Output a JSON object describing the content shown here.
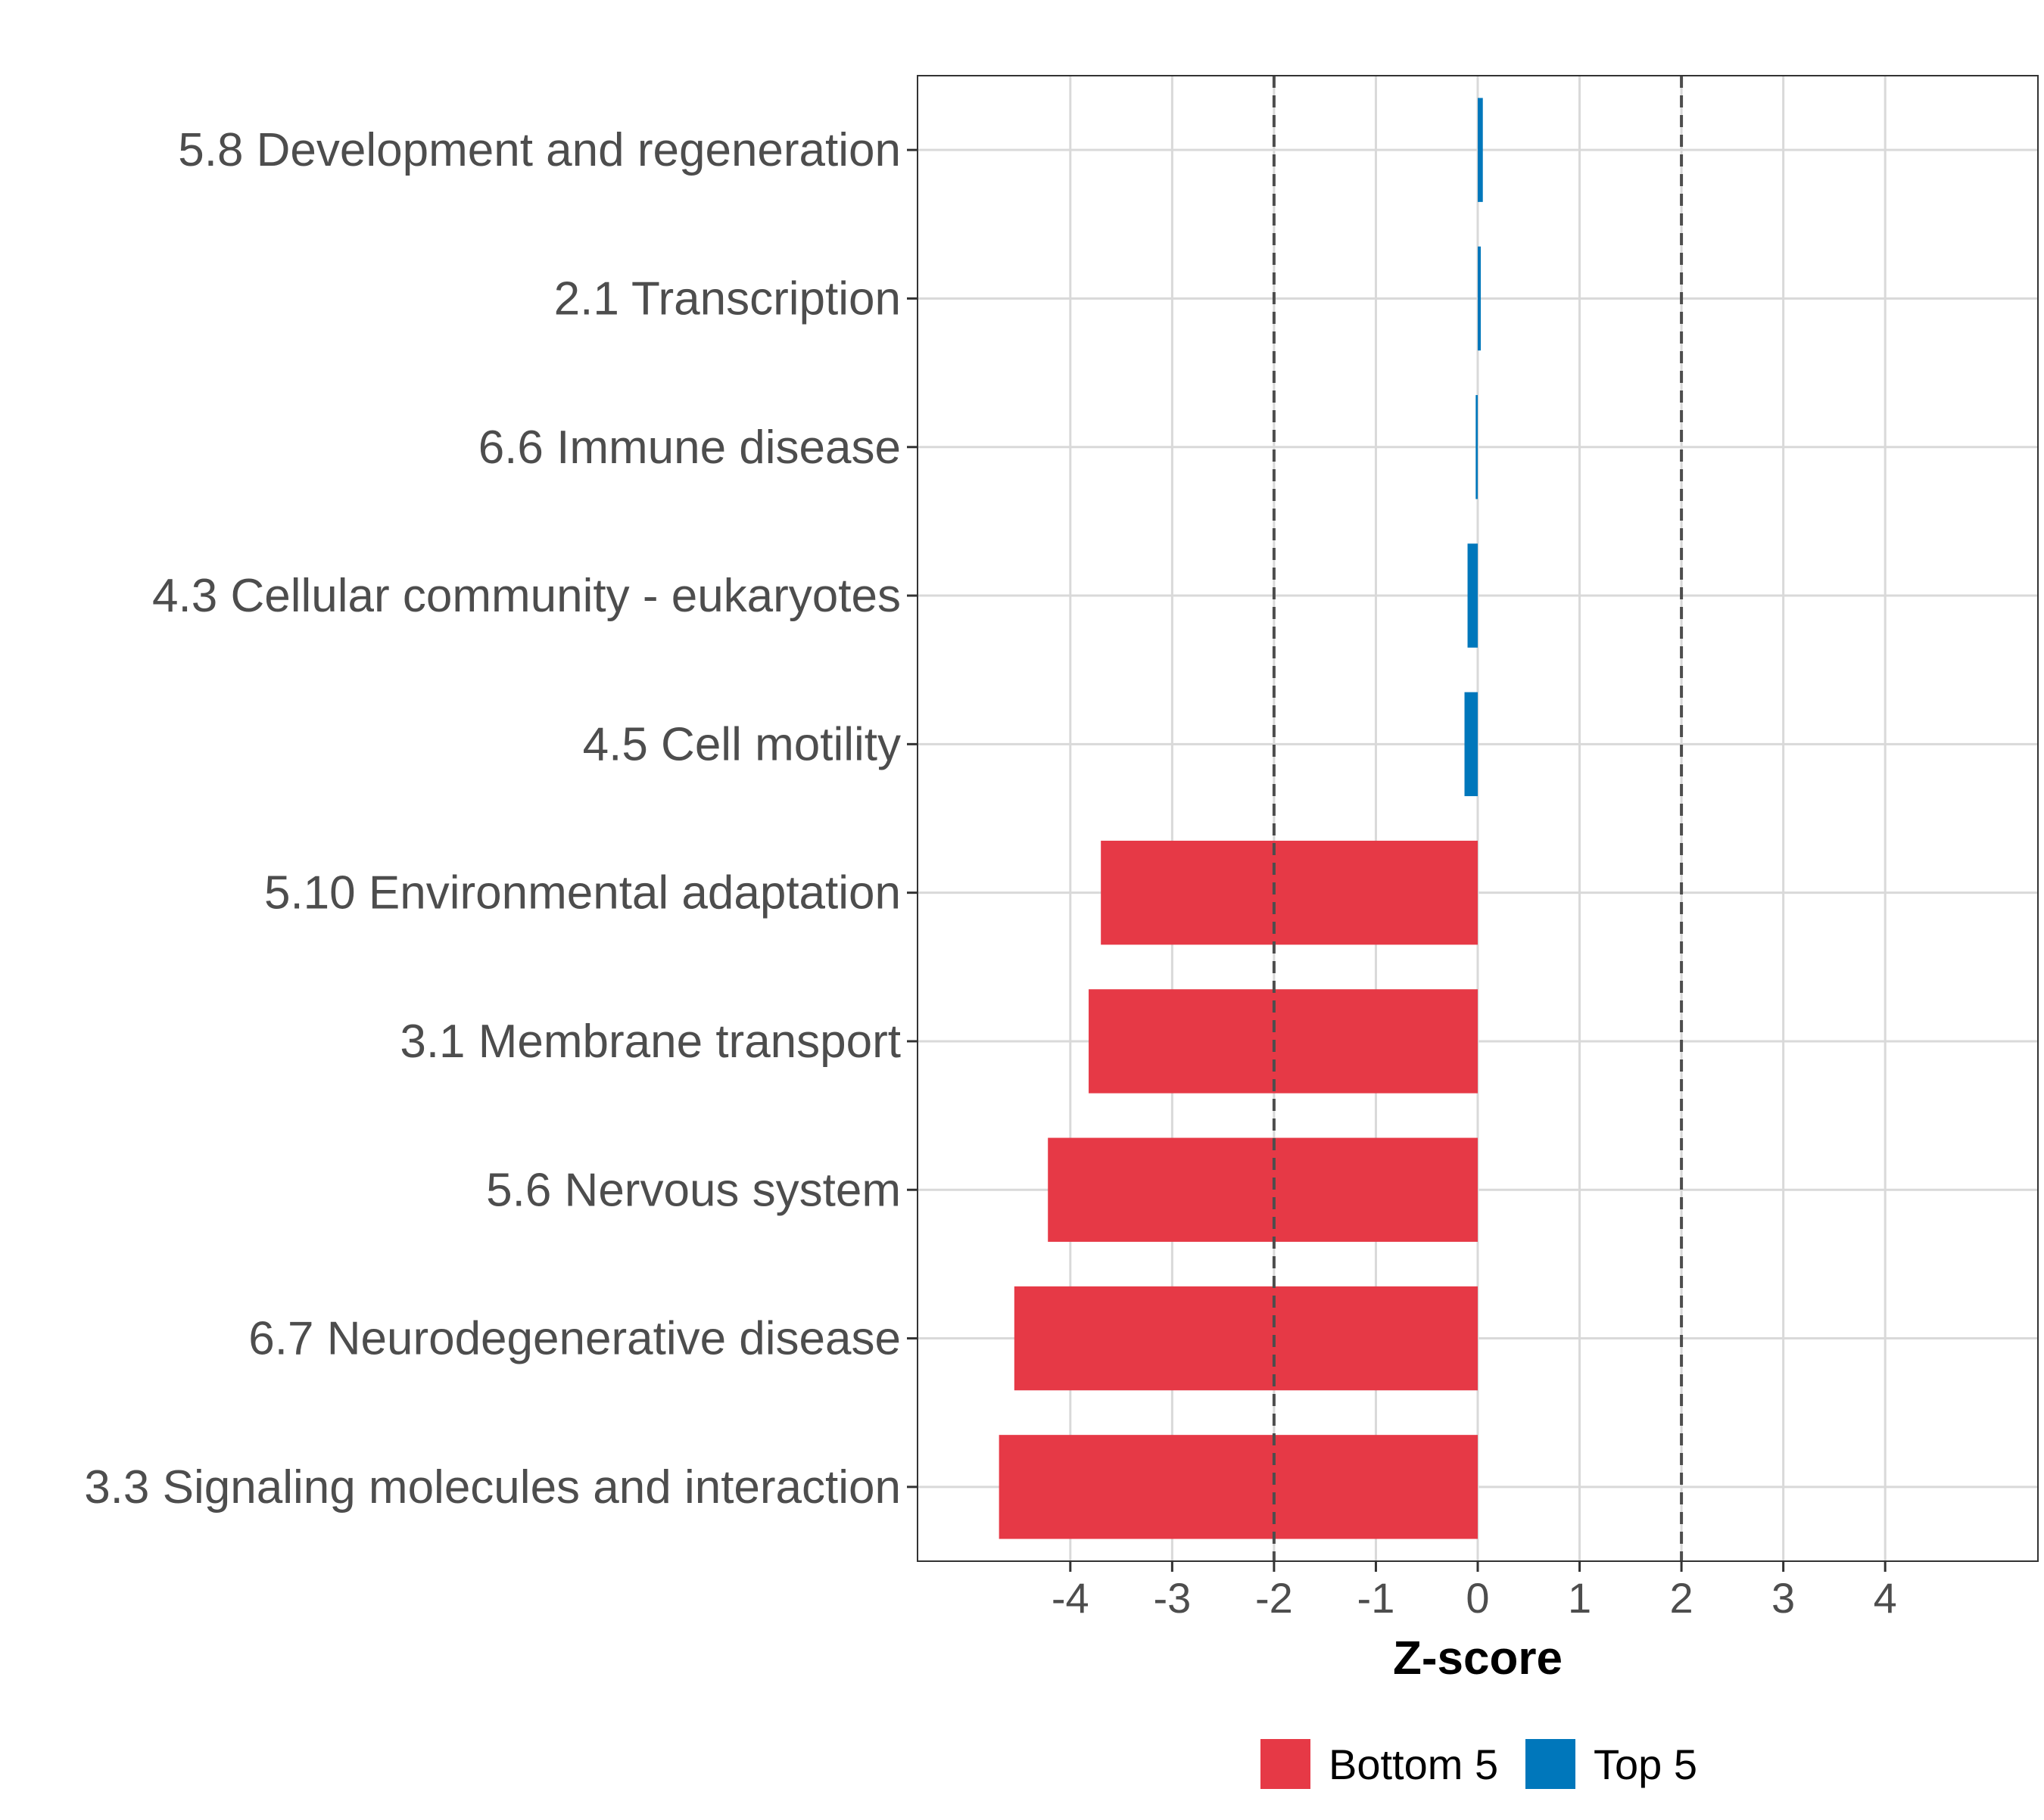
{
  "chart_data": {
    "type": "bar",
    "orientation": "horizontal",
    "title": "",
    "xlabel": "Z-score",
    "ylabel": "",
    "xlim": [
      -5.5,
      5.5
    ],
    "x_ticks": [
      -4,
      -3,
      -2,
      -1,
      0,
      1,
      2,
      3,
      4
    ],
    "x_tick_labels": [
      "-4",
      "-3",
      "-2",
      "-1",
      "0",
      "1",
      "2",
      "3",
      "4"
    ],
    "reference_lines": [
      -2,
      2
    ],
    "grid": true,
    "legend_position": "bottom",
    "colors": {
      "Bottom 5": "#e63946",
      "Top 5": "#0077bb"
    },
    "categories": [
      "5.8 Development and regeneration",
      "2.1 Transcription",
      "6.6 Immune disease",
      "4.3 Cellular community - eukaryotes",
      "4.5 Cell motility",
      "5.10 Environmental adaptation",
      "3.1 Membrane transport",
      "5.6 Nervous system",
      "6.7 Neurodegenerative disease",
      "3.3 Signaling molecules and interaction"
    ],
    "values": [
      0.05,
      0.03,
      -0.02,
      -0.1,
      -0.13,
      -3.7,
      -3.82,
      -4.22,
      -4.55,
      -4.7
    ],
    "groups": [
      "Top 5",
      "Top 5",
      "Top 5",
      "Top 5",
      "Top 5",
      "Bottom 5",
      "Bottom 5",
      "Bottom 5",
      "Bottom 5",
      "Bottom 5"
    ],
    "legend": [
      {
        "label": "Bottom 5",
        "color": "#e63946"
      },
      {
        "label": "Top 5",
        "color": "#0077bb"
      }
    ]
  }
}
